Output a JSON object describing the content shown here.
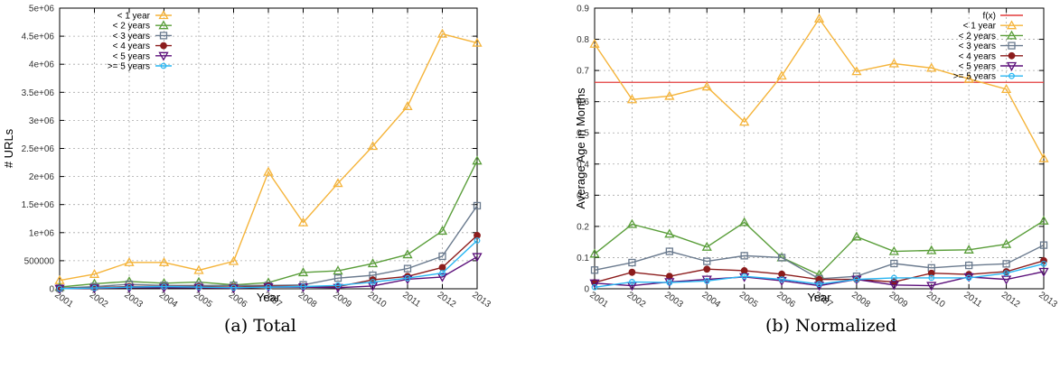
{
  "chart_data": [
    {
      "type": "line",
      "caption": "(a) Total",
      "xlabel": "Year",
      "ylabel": "# URLs",
      "x": [
        "2001",
        "2002",
        "2003",
        "2004",
        "2005",
        "2006",
        "2007",
        "2008",
        "2009",
        "2010",
        "2011",
        "2012",
        "2013"
      ],
      "ylim": [
        0,
        5000000
      ],
      "yticks": [
        0,
        500000,
        1000000,
        1500000,
        2000000,
        2500000,
        3000000,
        3500000,
        4000000,
        4500000,
        5000000
      ],
      "ytick_labels": [
        "0",
        "500000",
        "1e+06",
        "1.5e+06",
        "2e+06",
        "2.5e+06",
        "3e+06",
        "3.5e+06",
        "4e+06",
        "4.5e+06",
        "5e+06"
      ],
      "grid": true,
      "legend_position": "top-left",
      "series": [
        {
          "name": "< 1 year",
          "color": "#f5b43a",
          "marker": "triangle-up",
          "values": [
            150000,
            260000,
            470000,
            470000,
            330000,
            490000,
            2080000,
            1180000,
            1880000,
            2540000,
            3250000,
            4540000,
            4380000
          ]
        },
        {
          "name": "< 2 years",
          "color": "#5a9e3a",
          "marker": "triangle-up",
          "values": [
            30000,
            90000,
            130000,
            100000,
            120000,
            70000,
            110000,
            290000,
            320000,
            450000,
            610000,
            1030000,
            2280000
          ]
        },
        {
          "name": "< 3 years",
          "color": "#6a7a8e",
          "marker": "square",
          "values": [
            10000,
            40000,
            80000,
            60000,
            60000,
            60000,
            60000,
            70000,
            190000,
            240000,
            360000,
            580000,
            1480000
          ]
        },
        {
          "name": "< 4 years",
          "color": "#8c1c1c",
          "marker": "circle",
          "values": [
            5000,
            20000,
            40000,
            40000,
            40000,
            30000,
            50000,
            40000,
            40000,
            160000,
            220000,
            380000,
            950000
          ]
        },
        {
          "name": "< 5 years",
          "color": "#5b0f7a",
          "marker": "triangle-down",
          "values": [
            3000,
            10000,
            20000,
            20000,
            20000,
            10000,
            30000,
            30000,
            20000,
            50000,
            170000,
            210000,
            570000
          ]
        },
        {
          "name": ">= 5 years",
          "color": "#29b6f2",
          "marker": "circle-open",
          "values": [
            2000,
            15000,
            30000,
            40000,
            30000,
            20000,
            30000,
            40000,
            60000,
            120000,
            190000,
            280000,
            860000
          ]
        }
      ]
    },
    {
      "type": "line",
      "caption": "(b) Normalized",
      "xlabel": "Year",
      "ylabel": "Average Age in Months",
      "x": [
        "2001",
        "2002",
        "2003",
        "2004",
        "2005",
        "2006",
        "2007",
        "2008",
        "2009",
        "2010",
        "2011",
        "2012",
        "2013"
      ],
      "ylim": [
        0,
        0.9
      ],
      "yticks": [
        0,
        0.1,
        0.2,
        0.3,
        0.4,
        0.5,
        0.6,
        0.7,
        0.8,
        0.9
      ],
      "ytick_labels": [
        "0",
        "0.1",
        "0.2",
        "0.3",
        "0.4",
        "0.5",
        "0.6",
        "0.7",
        "0.8",
        "0.9"
      ],
      "grid": true,
      "legend_position": "top-right",
      "hline": {
        "name": "f(x)",
        "color": "#e33b3b",
        "value": 0.662
      },
      "series": [
        {
          "name": "< 1 year",
          "color": "#f5b43a",
          "marker": "triangle-up",
          "values": [
            0.785,
            0.607,
            0.618,
            0.648,
            0.535,
            0.683,
            0.866,
            0.697,
            0.722,
            0.708,
            0.673,
            0.64,
            0.418
          ]
        },
        {
          "name": "< 2 years",
          "color": "#5a9e3a",
          "marker": "triangle-up",
          "values": [
            0.112,
            0.207,
            0.176,
            0.134,
            0.213,
            0.1,
            0.045,
            0.167,
            0.12,
            0.123,
            0.125,
            0.143,
            0.218
          ]
        },
        {
          "name": "< 3 years",
          "color": "#6a7a8e",
          "marker": "square",
          "values": [
            0.06,
            0.084,
            0.12,
            0.088,
            0.106,
            0.1,
            0.032,
            0.04,
            0.081,
            0.067,
            0.075,
            0.08,
            0.14
          ]
        },
        {
          "name": "< 4 years",
          "color": "#8c1c1c",
          "marker": "circle",
          "values": [
            0.02,
            0.053,
            0.04,
            0.063,
            0.058,
            0.047,
            0.03,
            0.03,
            0.022,
            0.05,
            0.046,
            0.055,
            0.09
          ]
        },
        {
          "name": "< 5 years",
          "color": "#5b0f7a",
          "marker": "triangle-down",
          "values": [
            0.018,
            0.01,
            0.022,
            0.03,
            0.038,
            0.026,
            0.01,
            0.03,
            0.012,
            0.01,
            0.038,
            0.03,
            0.055
          ]
        },
        {
          "name": ">= 5 years",
          "color": "#29b6f2",
          "marker": "circle-open",
          "values": [
            0.005,
            0.022,
            0.02,
            0.025,
            0.04,
            0.03,
            0.015,
            0.03,
            0.035,
            0.035,
            0.035,
            0.05,
            0.08
          ]
        }
      ]
    }
  ]
}
